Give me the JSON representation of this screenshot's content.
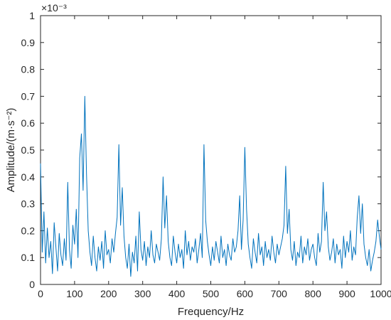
{
  "chart_data": {
    "type": "line",
    "title": "",
    "xlabel": "Frequency/Hz",
    "ylabel": "Amplitude/(m·s⁻²)",
    "y_exponent_label": "×10⁻³",
    "xlim": [
      0,
      1000
    ],
    "ylim": [
      0,
      1
    ],
    "xticks": [
      0,
      100,
      200,
      300,
      400,
      500,
      600,
      700,
      800,
      900,
      1000
    ],
    "yticks": [
      0,
      0.1,
      0.2,
      0.3,
      0.4,
      0.5,
      0.6,
      0.7,
      0.8,
      0.9,
      1
    ],
    "xtick_labels": [
      "0",
      "100",
      "200",
      "300",
      "400",
      "500",
      "600",
      "700",
      "800",
      "900",
      "1000"
    ],
    "ytick_labels": [
      "0",
      "0.1",
      "0.2",
      "0.3",
      "0.4",
      "0.5",
      "0.6",
      "0.7",
      "0.8",
      "0.9",
      "1"
    ],
    "grid": false,
    "series_color": "#0072BD",
    "series": [
      {
        "name": "",
        "x": [
          0,
          5,
          10,
          15,
          20,
          25,
          30,
          35,
          40,
          45,
          50,
          55,
          60,
          65,
          70,
          75,
          80,
          85,
          90,
          95,
          100,
          105,
          110,
          115,
          120,
          125,
          130,
          135,
          140,
          145,
          150,
          155,
          160,
          165,
          170,
          175,
          180,
          185,
          190,
          195,
          200,
          205,
          210,
          215,
          220,
          225,
          230,
          235,
          240,
          245,
          250,
          255,
          260,
          265,
          270,
          275,
          280,
          285,
          290,
          295,
          300,
          305,
          310,
          315,
          320,
          325,
          330,
          335,
          340,
          345,
          350,
          355,
          360,
          365,
          370,
          375,
          380,
          385,
          390,
          395,
          400,
          405,
          410,
          415,
          420,
          425,
          430,
          435,
          440,
          445,
          450,
          455,
          460,
          465,
          470,
          475,
          480,
          485,
          490,
          495,
          500,
          505,
          510,
          515,
          520,
          525,
          530,
          535,
          540,
          545,
          550,
          555,
          560,
          565,
          570,
          575,
          580,
          585,
          590,
          595,
          600,
          605,
          610,
          615,
          620,
          625,
          630,
          635,
          640,
          645,
          650,
          655,
          660,
          665,
          670,
          675,
          680,
          685,
          690,
          695,
          700,
          705,
          710,
          715,
          720,
          725,
          730,
          735,
          740,
          745,
          750,
          755,
          760,
          765,
          770,
          775,
          780,
          785,
          790,
          795,
          800,
          805,
          810,
          815,
          820,
          825,
          830,
          835,
          840,
          845,
          850,
          855,
          860,
          865,
          870,
          875,
          880,
          885,
          890,
          895,
          900,
          905,
          910,
          915,
          920,
          925,
          930,
          935,
          940,
          945,
          950,
          955,
          960,
          965,
          970,
          975,
          980,
          985,
          990,
          995,
          1000
        ],
        "y": [
          0.45,
          0.12,
          0.27,
          0.08,
          0.21,
          0.1,
          0.16,
          0.04,
          0.23,
          0.14,
          0.05,
          0.19,
          0.11,
          0.07,
          0.17,
          0.09,
          0.38,
          0.13,
          0.06,
          0.22,
          0.15,
          0.28,
          0.1,
          0.47,
          0.56,
          0.35,
          0.7,
          0.41,
          0.2,
          0.12,
          0.07,
          0.18,
          0.1,
          0.05,
          0.14,
          0.09,
          0.16,
          0.06,
          0.2,
          0.11,
          0.13,
          0.08,
          0.17,
          0.12,
          0.19,
          0.25,
          0.52,
          0.22,
          0.36,
          0.18,
          0.1,
          0.06,
          0.15,
          0.03,
          0.12,
          0.08,
          0.18,
          0.05,
          0.27,
          0.13,
          0.09,
          0.16,
          0.07,
          0.14,
          0.1,
          0.2,
          0.11,
          0.08,
          0.15,
          0.12,
          0.09,
          0.17,
          0.4,
          0.21,
          0.33,
          0.16,
          0.1,
          0.07,
          0.18,
          0.12,
          0.08,
          0.15,
          0.1,
          0.13,
          0.06,
          0.2,
          0.11,
          0.16,
          0.09,
          0.14,
          0.12,
          0.17,
          0.08,
          0.13,
          0.19,
          0.1,
          0.52,
          0.24,
          0.16,
          0.11,
          0.07,
          0.14,
          0.09,
          0.16,
          0.12,
          0.08,
          0.18,
          0.1,
          0.13,
          0.07,
          0.15,
          0.11,
          0.09,
          0.17,
          0.12,
          0.14,
          0.2,
          0.33,
          0.13,
          0.24,
          0.51,
          0.28,
          0.15,
          0.1,
          0.06,
          0.17,
          0.12,
          0.08,
          0.19,
          0.11,
          0.14,
          0.07,
          0.16,
          0.1,
          0.13,
          0.09,
          0.18,
          0.12,
          0.08,
          0.15,
          0.11,
          0.14,
          0.17,
          0.22,
          0.44,
          0.19,
          0.28,
          0.13,
          0.09,
          0.16,
          0.07,
          0.12,
          0.1,
          0.18,
          0.08,
          0.14,
          0.11,
          0.17,
          0.09,
          0.13,
          0.15,
          0.1,
          0.07,
          0.19,
          0.12,
          0.16,
          0.38,
          0.2,
          0.27,
          0.14,
          0.09,
          0.12,
          0.17,
          0.08,
          0.15,
          0.11,
          0.13,
          0.06,
          0.18,
          0.1,
          0.16,
          0.12,
          0.2,
          0.09,
          0.14,
          0.11,
          0.25,
          0.33,
          0.19,
          0.3,
          0.15,
          0.1,
          0.07,
          0.13,
          0.05,
          0.09,
          0.12,
          0.16,
          0.24,
          0.18,
          0.13
        ]
      }
    ]
  }
}
